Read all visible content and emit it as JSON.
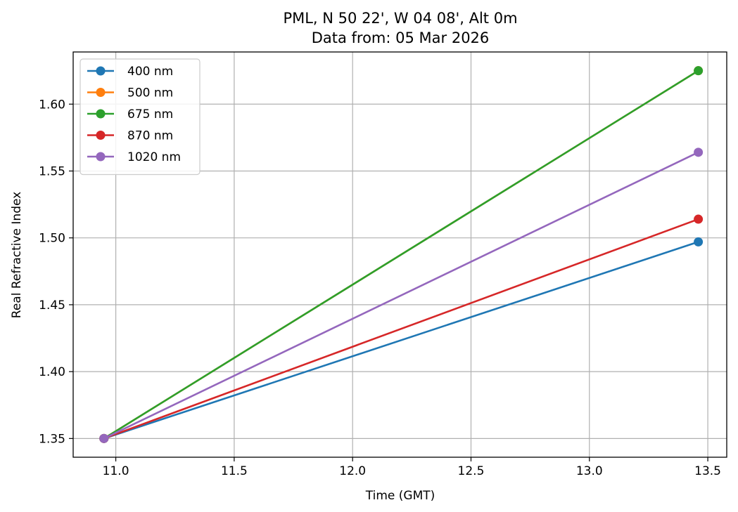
{
  "chart_data": {
    "type": "line",
    "title_lines": [
      "PML, N 50 22', W 04 08', Alt 0m",
      "Data from: 05 Mar 2026"
    ],
    "xlabel": "Time (GMT)",
    "ylabel": "Real Refractive Index",
    "xlim": [
      10.82,
      13.58
    ],
    "ylim": [
      1.336,
      1.639
    ],
    "xticks": [
      11.0,
      11.5,
      12.0,
      12.5,
      13.0,
      13.5
    ],
    "xtick_labels": [
      "11.0",
      "11.5",
      "12.0",
      "12.5",
      "13.0",
      "13.5"
    ],
    "yticks": [
      1.35,
      1.4,
      1.45,
      1.5,
      1.55,
      1.6
    ],
    "ytick_labels": [
      "1.35",
      "1.40",
      "1.45",
      "1.50",
      "1.55",
      "1.60"
    ],
    "grid": true,
    "legend_position": "top-left",
    "series": [
      {
        "name": "400 nm",
        "color": "#1f77b4",
        "x": [
          10.95,
          13.46
        ],
        "y": [
          1.35,
          1.497
        ]
      },
      {
        "name": "500 nm",
        "color": "#ff7f0e",
        "x": [
          10.95,
          13.46
        ],
        "y": [
          1.35,
          1.625
        ]
      },
      {
        "name": "675 nm",
        "color": "#2ca02c",
        "x": [
          10.95,
          13.46
        ],
        "y": [
          1.35,
          1.625
        ]
      },
      {
        "name": "870 nm",
        "color": "#d62728",
        "x": [
          10.95,
          13.46
        ],
        "y": [
          1.35,
          1.514
        ]
      },
      {
        "name": "1020 nm",
        "color": "#9467bd",
        "x": [
          10.95,
          13.46
        ],
        "y": [
          1.35,
          1.564
        ]
      }
    ]
  }
}
